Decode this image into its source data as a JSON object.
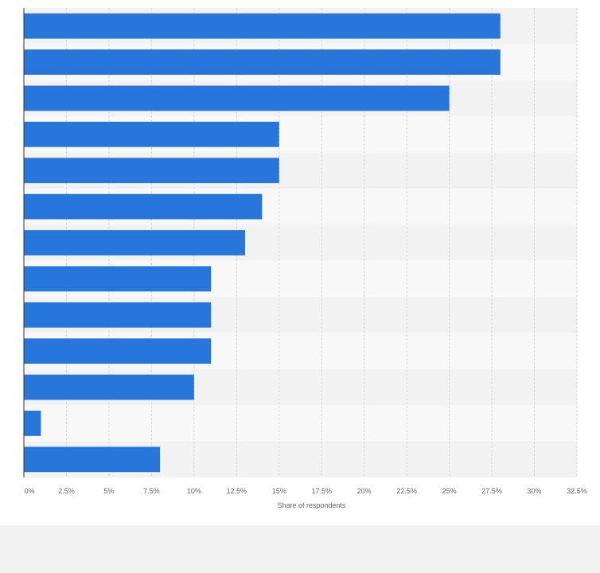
{
  "chart_data": {
    "type": "bar",
    "orientation": "horizontal",
    "categories": [
      "",
      "",
      "",
      "",
      "",
      "",
      "",
      "",
      "",
      "",
      "",
      "",
      ""
    ],
    "values": [
      28,
      28,
      25,
      15,
      15,
      14,
      13,
      11,
      11,
      11,
      10,
      1,
      8
    ],
    "xlabel": "Share of respondents",
    "ylabel": "",
    "xlim": [
      0,
      32.5
    ],
    "xticks": [
      0,
      2.5,
      5,
      7.5,
      10,
      12.5,
      15,
      17.5,
      20,
      22.5,
      25,
      27.5,
      30,
      32.5
    ],
    "xtick_labels": [
      "0%",
      "2.5%",
      "5%",
      "7.5%",
      "10%",
      "12.5%",
      "15%",
      "17.5%",
      "20%",
      "22.5%",
      "25%",
      "27.5%",
      "30%",
      "32.5%"
    ],
    "bar_color": "#2776dc",
    "grid": true
  }
}
